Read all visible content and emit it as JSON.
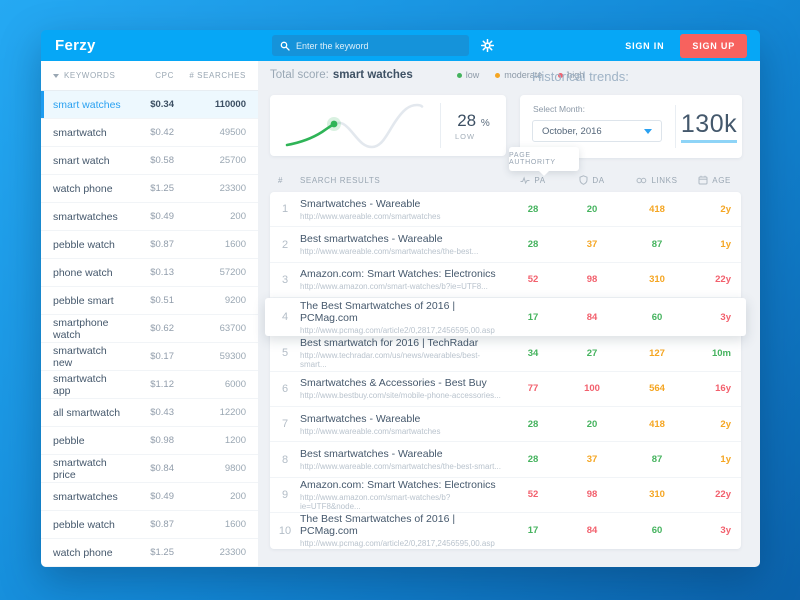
{
  "topbar": {
    "logo": "Ferzy",
    "search_placeholder": "Enter the keyword",
    "sign_in": "SIGN IN",
    "sign_up": "SIGN UP"
  },
  "sidebar": {
    "header": {
      "keywords": "KEYWORDS",
      "cpc": "CPC",
      "searches": "# SEARCHES"
    },
    "items": [
      {
        "keyword": "smart watches",
        "cpc": "$0.34",
        "searches": "110000",
        "selected": true
      },
      {
        "keyword": "smartwatch",
        "cpc": "$0.42",
        "searches": "49500",
        "selected": false
      },
      {
        "keyword": "smart watch",
        "cpc": "$0.58",
        "searches": "25700",
        "selected": false
      },
      {
        "keyword": "watch phone",
        "cpc": "$1.25",
        "searches": "23300",
        "selected": false
      },
      {
        "keyword": "smartwatches",
        "cpc": "$0.49",
        "searches": "200",
        "selected": false
      },
      {
        "keyword": "pebble watch",
        "cpc": "$0.87",
        "searches": "1600",
        "selected": false
      },
      {
        "keyword": "phone watch",
        "cpc": "$0.13",
        "searches": "57200",
        "selected": false
      },
      {
        "keyword": "pebble smart",
        "cpc": "$0.51",
        "searches": "9200",
        "selected": false
      },
      {
        "keyword": "smartphone watch",
        "cpc": "$0.62",
        "searches": "63700",
        "selected": false
      },
      {
        "keyword": "smartwatch new",
        "cpc": "$0.17",
        "searches": "59300",
        "selected": false
      },
      {
        "keyword": "smartwatch app",
        "cpc": "$1.12",
        "searches": "6000",
        "selected": false
      },
      {
        "keyword": "all smartwatch",
        "cpc": "$0.43",
        "searches": "12200",
        "selected": false
      },
      {
        "keyword": "pebble",
        "cpc": "$0.98",
        "searches": "1200",
        "selected": false
      },
      {
        "keyword": "smartwatch price",
        "cpc": "$0.84",
        "searches": "9800",
        "selected": false
      },
      {
        "keyword": "smartwatches",
        "cpc": "$0.49",
        "searches": "200",
        "selected": false
      },
      {
        "keyword": "pebble watch",
        "cpc": "$0.87",
        "searches": "1600",
        "selected": false
      },
      {
        "keyword": "watch phone",
        "cpc": "$1.25",
        "searches": "23300",
        "selected": false
      }
    ]
  },
  "main": {
    "total_score_label": "Total score:",
    "total_score_keyword": "smart watches",
    "legend": [
      {
        "label": "low",
        "color": "#45b35e"
      },
      {
        "label": "moderate",
        "color": "#f5a623"
      },
      {
        "label": "high",
        "color": "#f2606d"
      }
    ],
    "historical_trends_label": "Historical trends:",
    "score_card": {
      "percent": "28",
      "percent_sign": "%",
      "level": "LOW"
    },
    "trends_card": {
      "select_month_label": "Select Month:",
      "selected_month": "October, 2016",
      "stat": "130k"
    },
    "tooltip": "PAGE AUTHORITY",
    "table": {
      "headers": {
        "num": "#",
        "results": "SEARCH RESULTS",
        "pa": "PA",
        "da": "DA",
        "links": "LINKS",
        "age": "AGE"
      },
      "rows": [
        {
          "num": "1",
          "title": "Smartwatches - Wareable",
          "url": "http://www.wareable.com/smartwatches",
          "pa": {
            "v": "28",
            "c": "green"
          },
          "da": {
            "v": "20",
            "c": "green"
          },
          "links": {
            "v": "418",
            "c": "orange"
          },
          "age": {
            "v": "2y",
            "c": "orange"
          },
          "highlighted": false
        },
        {
          "num": "2",
          "title": "Best smartwatches - Wareable",
          "url": "http://www.wareable.com/smartwatches/the-best...",
          "pa": {
            "v": "28",
            "c": "green"
          },
          "da": {
            "v": "37",
            "c": "orange"
          },
          "links": {
            "v": "87",
            "c": "green"
          },
          "age": {
            "v": "1y",
            "c": "orange"
          },
          "highlighted": false
        },
        {
          "num": "3",
          "title": "Amazon.com: Smart Watches: Electronics",
          "url": "http://www.amazon.com/smart-watches/b?ie=UTF8...",
          "pa": {
            "v": "52",
            "c": "red"
          },
          "da": {
            "v": "98",
            "c": "red"
          },
          "links": {
            "v": "310",
            "c": "orange"
          },
          "age": {
            "v": "22y",
            "c": "red"
          },
          "highlighted": false
        },
        {
          "num": "4",
          "title": "The Best Smartwatches of 2016 | PCMag.com",
          "url": "http://www.pcmag.com/article2/0,2817,2456595,00.asp",
          "pa": {
            "v": "17",
            "c": "green"
          },
          "da": {
            "v": "84",
            "c": "red"
          },
          "links": {
            "v": "60",
            "c": "green"
          },
          "age": {
            "v": "3y",
            "c": "red"
          },
          "highlighted": true
        },
        {
          "num": "5",
          "title": "Best smartwatch for 2016 | TechRadar",
          "url": "http://www.techradar.com/us/news/wearables/best-smart...",
          "pa": {
            "v": "34",
            "c": "green"
          },
          "da": {
            "v": "27",
            "c": "green"
          },
          "links": {
            "v": "127",
            "c": "orange"
          },
          "age": {
            "v": "10m",
            "c": "green"
          },
          "highlighted": false
        },
        {
          "num": "6",
          "title": "Smartwatches & Accessories - Best Buy",
          "url": "http://www.bestbuy.com/site/mobile-phone-accessories...",
          "pa": {
            "v": "77",
            "c": "red"
          },
          "da": {
            "v": "100",
            "c": "red"
          },
          "links": {
            "v": "564",
            "c": "orange"
          },
          "age": {
            "v": "16y",
            "c": "red"
          },
          "highlighted": false
        },
        {
          "num": "7",
          "title": "Smartwatches - Wareable",
          "url": "http://www.wareable.com/smartwatches",
          "pa": {
            "v": "28",
            "c": "green"
          },
          "da": {
            "v": "20",
            "c": "green"
          },
          "links": {
            "v": "418",
            "c": "orange"
          },
          "age": {
            "v": "2y",
            "c": "orange"
          },
          "highlighted": false
        },
        {
          "num": "8",
          "title": "Best smartwatches - Wareable",
          "url": "http://www.wareable.com/smartwatches/the-best-smart...",
          "pa": {
            "v": "28",
            "c": "green"
          },
          "da": {
            "v": "37",
            "c": "orange"
          },
          "links": {
            "v": "87",
            "c": "green"
          },
          "age": {
            "v": "1y",
            "c": "orange"
          },
          "highlighted": false
        },
        {
          "num": "9",
          "title": "Amazon.com: Smart Watches: Electronics",
          "url": "http://www.amazon.com/smart-watches/b?ie=UTF8&node...",
          "pa": {
            "v": "52",
            "c": "red"
          },
          "da": {
            "v": "98",
            "c": "red"
          },
          "links": {
            "v": "310",
            "c": "orange"
          },
          "age": {
            "v": "22y",
            "c": "red"
          },
          "highlighted": false
        },
        {
          "num": "10",
          "title": "The Best Smartwatches of 2016 | PCMag.com",
          "url": "http://www.pcmag.com/article2/0,2817,2456595,00.asp",
          "pa": {
            "v": "17",
            "c": "green"
          },
          "da": {
            "v": "84",
            "c": "red"
          },
          "links": {
            "v": "60",
            "c": "green"
          },
          "age": {
            "v": "3y",
            "c": "red"
          },
          "highlighted": false
        }
      ]
    }
  },
  "colors": {
    "topbar_blue": "#06a7f6",
    "accent_blue": "#2aa1f1",
    "signup_red": "#f7625e",
    "low_green": "#45b35e",
    "moderate_orange": "#f5a623",
    "high_red": "#f2606d",
    "stat_underline": "#8ed4f7"
  }
}
